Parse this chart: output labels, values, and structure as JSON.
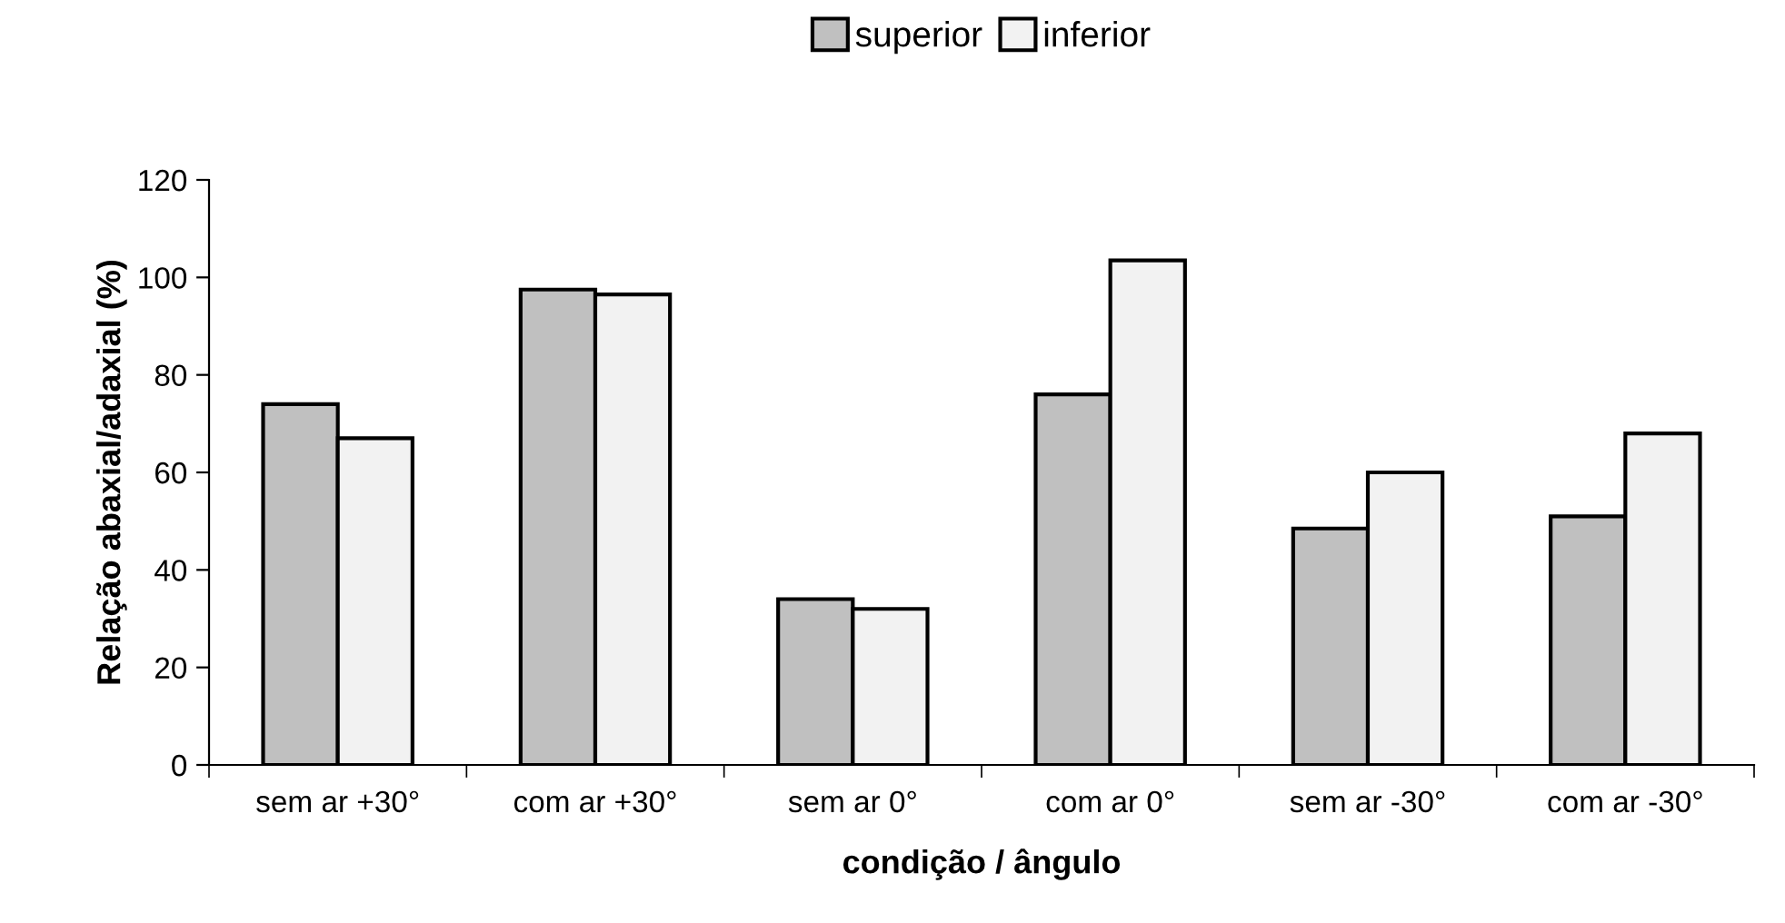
{
  "chart_data": {
    "type": "bar",
    "xlabel": "condição / ângulo",
    "ylabel": "Relação abaxial/adaxial (%)",
    "categories": [
      "sem ar +30°",
      "com ar +30°",
      "sem ar 0°",
      "com ar 0°",
      "sem ar -30°",
      "com ar -30°"
    ],
    "series": [
      {
        "name": "superior",
        "color": "#c0c0c0",
        "values": [
          74,
          97.5,
          34,
          76,
          48.5,
          51
        ]
      },
      {
        "name": "inferior",
        "color": "#f2f2f2",
        "values": [
          67,
          96.5,
          32,
          103.5,
          60,
          68
        ]
      }
    ],
    "ylim": [
      0,
      120
    ],
    "yticks": [
      0,
      20,
      40,
      60,
      80,
      100,
      120
    ],
    "grid": false,
    "legend": "top"
  }
}
